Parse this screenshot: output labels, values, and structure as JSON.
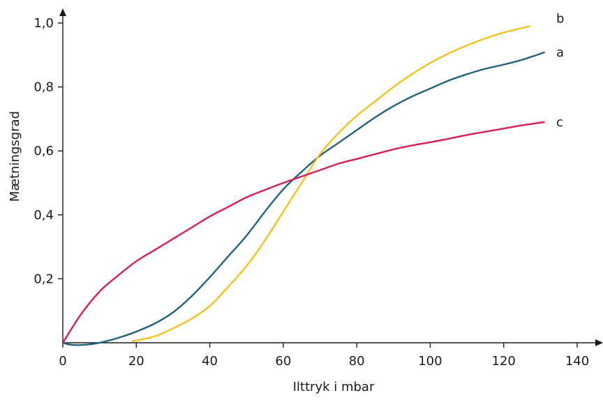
{
  "chart_data": {
    "type": "line",
    "xlabel": "Ilttryk i mbar",
    "ylabel": "Mætningsgrad",
    "xlim": [
      0,
      140
    ],
    "ylim": [
      0,
      1.0
    ],
    "x_ticks": [
      0,
      20,
      40,
      60,
      80,
      100,
      120,
      140
    ],
    "x_tick_labels": [
      "0",
      "20",
      "40",
      "60",
      "80",
      "100",
      "120",
      "140"
    ],
    "y_ticks": [
      0.2,
      0.4,
      0.6,
      0.8,
      1.0
    ],
    "y_tick_labels": [
      "0,2",
      "0,4",
      "0,6",
      "0,8",
      "1,0"
    ],
    "grid": false,
    "series": [
      {
        "name": "a",
        "color": "#21627f",
        "points": [
          [
            0,
            0
          ],
          [
            2,
            -0.006
          ],
          [
            5,
            -0.007
          ],
          [
            8,
            -0.004
          ],
          [
            10,
            0
          ],
          [
            15,
            0.015
          ],
          [
            20,
            0.035
          ],
          [
            25,
            0.06
          ],
          [
            30,
            0.095
          ],
          [
            35,
            0.145
          ],
          [
            40,
            0.205
          ],
          [
            45,
            0.27
          ],
          [
            50,
            0.335
          ],
          [
            55,
            0.41
          ],
          [
            60,
            0.48
          ],
          [
            65,
            0.535
          ],
          [
            70,
            0.585
          ],
          [
            75,
            0.625
          ],
          [
            80,
            0.665
          ],
          [
            85,
            0.705
          ],
          [
            90,
            0.74
          ],
          [
            95,
            0.77
          ],
          [
            100,
            0.795
          ],
          [
            105,
            0.82
          ],
          [
            110,
            0.84
          ],
          [
            115,
            0.857
          ],
          [
            120,
            0.87
          ],
          [
            125,
            0.885
          ],
          [
            131,
            0.908
          ]
        ]
      },
      {
        "name": "b",
        "color": "#f4c21f",
        "points": [
          [
            19,
            0.005
          ],
          [
            25,
            0.02
          ],
          [
            30,
            0.045
          ],
          [
            35,
            0.075
          ],
          [
            40,
            0.115
          ],
          [
            45,
            0.175
          ],
          [
            50,
            0.24
          ],
          [
            55,
            0.32
          ],
          [
            60,
            0.41
          ],
          [
            65,
            0.5
          ],
          [
            70,
            0.59
          ],
          [
            75,
            0.655
          ],
          [
            80,
            0.71
          ],
          [
            85,
            0.755
          ],
          [
            90,
            0.8
          ],
          [
            95,
            0.84
          ],
          [
            100,
            0.875
          ],
          [
            105,
            0.905
          ],
          [
            110,
            0.93
          ],
          [
            115,
            0.952
          ],
          [
            120,
            0.97
          ],
          [
            127,
            0.99
          ]
        ]
      },
      {
        "name": "c",
        "color": "#d81e52",
        "points": [
          [
            0,
            0
          ],
          [
            5,
            0.09
          ],
          [
            10,
            0.16
          ],
          [
            15,
            0.21
          ],
          [
            20,
            0.255
          ],
          [
            25,
            0.29
          ],
          [
            30,
            0.325
          ],
          [
            35,
            0.36
          ],
          [
            40,
            0.395
          ],
          [
            45,
            0.425
          ],
          [
            50,
            0.455
          ],
          [
            55,
            0.478
          ],
          [
            60,
            0.5
          ],
          [
            65,
            0.52
          ],
          [
            70,
            0.54
          ],
          [
            75,
            0.56
          ],
          [
            80,
            0.575
          ],
          [
            85,
            0.59
          ],
          [
            90,
            0.605
          ],
          [
            95,
            0.617
          ],
          [
            100,
            0.627
          ],
          [
            105,
            0.638
          ],
          [
            110,
            0.65
          ],
          [
            115,
            0.66
          ],
          [
            120,
            0.67
          ],
          [
            125,
            0.68
          ],
          [
            131,
            0.69
          ]
        ]
      }
    ]
  }
}
